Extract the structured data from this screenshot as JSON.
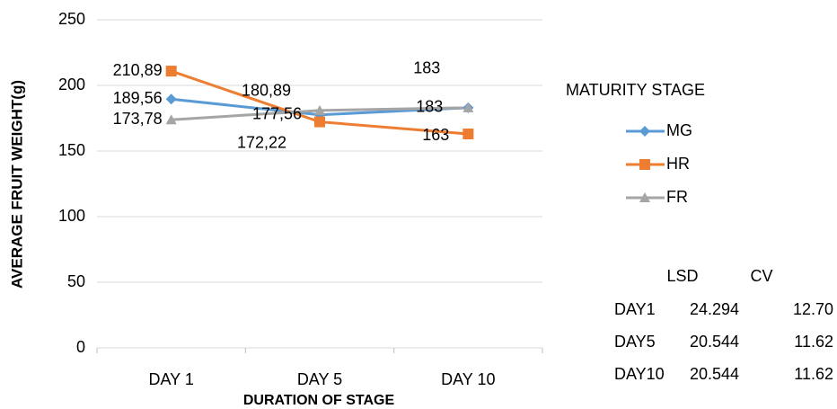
{
  "chart_data": {
    "type": "line",
    "y_label": "AVERAGE FRUIT WEIGHT(g)",
    "x_label": "DURATION OF STAGE",
    "categories": [
      "DAY 1",
      "DAY 5",
      "DAY 10"
    ],
    "ylim": [
      0,
      250
    ],
    "yticks": [
      0,
      50,
      100,
      150,
      200,
      250
    ],
    "grid": true,
    "legend_title": "MATURITY STAGE",
    "legend": "right",
    "series": [
      {
        "name": "MG",
        "color": "#5b9bd5",
        "marker": "diamond",
        "values": [
          189.56,
          177.56,
          183
        ],
        "value_labels": [
          "189,56",
          "177,56",
          "183"
        ]
      },
      {
        "name": "HR",
        "color": "#ed7d31",
        "marker": "square",
        "values": [
          210.89,
          172.22,
          163
        ],
        "value_labels": [
          "210,89",
          "172,22",
          "163"
        ]
      },
      {
        "name": "FR",
        "color": "#a5a5a5",
        "marker": "triangle",
        "values": [
          173.78,
          180.89,
          183
        ],
        "value_labels": [
          "173,78",
          "180,89",
          "183"
        ]
      }
    ]
  },
  "table": {
    "header": [
      "LSD",
      "CV"
    ],
    "rows": [
      [
        "DAY1",
        "24.294",
        "12.70"
      ],
      [
        "DAY5",
        "20.544",
        "11.62"
      ],
      [
        "DAY10",
        "20.544",
        "11.62"
      ]
    ]
  }
}
